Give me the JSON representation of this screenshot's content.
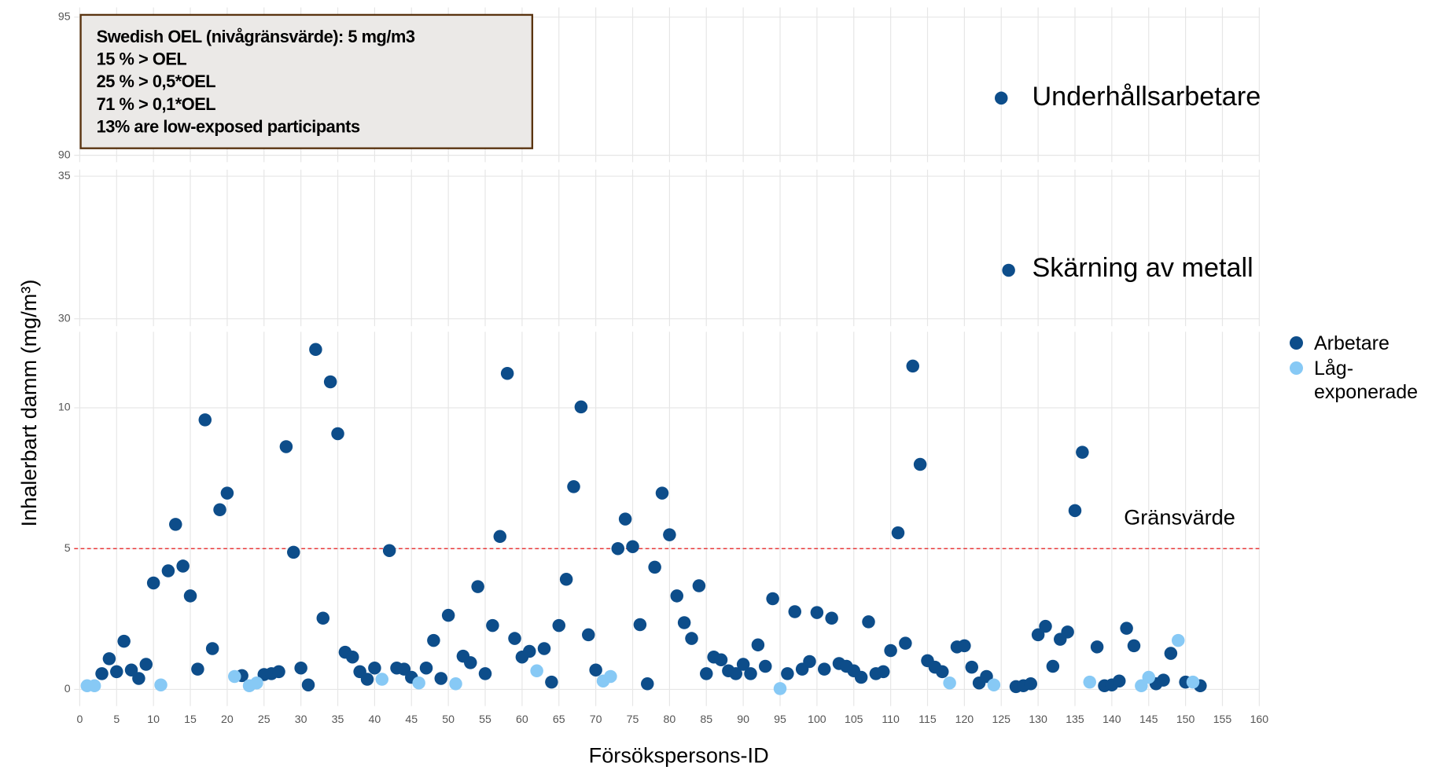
{
  "chart_data": {
    "type": "scatter",
    "xlabel": "Försökspersons-ID",
    "ylabel": "Inhalerbart damm (mg/m³)",
    "xlim": [
      0,
      160
    ],
    "xticks": [
      0,
      5,
      10,
      15,
      20,
      25,
      30,
      35,
      40,
      45,
      50,
      55,
      60,
      65,
      70,
      75,
      80,
      85,
      90,
      95,
      100,
      105,
      110,
      115,
      120,
      125,
      130,
      135,
      140,
      145,
      150,
      155,
      160
    ],
    "panels": [
      {
        "ylim": [
          89.75,
          95.35
        ],
        "yticks": [
          90,
          95
        ]
      },
      {
        "ylim": [
          29.74,
          35.23
        ],
        "yticks": [
          30,
          35
        ]
      },
      {
        "ylim": [
          -0.59,
          12.7
        ],
        "yticks": [
          0,
          5,
          10
        ]
      }
    ],
    "grid": true,
    "legend": "right",
    "series": [
      {
        "name": "Arbetare",
        "color": "#0d4d8a",
        "x": [
          3,
          4,
          5,
          6,
          7,
          8,
          9,
          10,
          12,
          13,
          14,
          15,
          16,
          17,
          18,
          19,
          20,
          22,
          25,
          26,
          27,
          28,
          29,
          30,
          31,
          32,
          33,
          34,
          35,
          36,
          37,
          38,
          39,
          40,
          42,
          43,
          44,
          45,
          47,
          48,
          49,
          50,
          52,
          53,
          54,
          55,
          56,
          57,
          58,
          59,
          60,
          61,
          63,
          64,
          65,
          66,
          67,
          68,
          69,
          70,
          73,
          74,
          75,
          76,
          77,
          78,
          79,
          80,
          81,
          82,
          83,
          84,
          85,
          86,
          87,
          88,
          89,
          90,
          91,
          92,
          93,
          94,
          96,
          97,
          98,
          99,
          100,
          101,
          102,
          103,
          104,
          105,
          106,
          107,
          108,
          109,
          110,
          111,
          112,
          113,
          114,
          115,
          116,
          117,
          119,
          120,
          121,
          122,
          123,
          125,
          126,
          127,
          128,
          129,
          130,
          131,
          132,
          133,
          134,
          135,
          136,
          138,
          139,
          140,
          141,
          142,
          143,
          146,
          147,
          148,
          150,
          152
        ],
        "values": [
          0.56,
          1.09,
          0.63,
          1.71,
          0.69,
          0.39,
          0.89,
          3.78,
          4.21,
          5.86,
          4.38,
          3.32,
          0.72,
          9.57,
          1.45,
          6.38,
          6.97,
          0.49,
          0.53,
          0.56,
          0.63,
          8.62,
          4.87,
          0.76,
          0.16,
          12.07,
          2.53,
          10.92,
          9.08,
          1.32,
          1.15,
          0.63,
          0.36,
          0.76,
          4.93,
          0.76,
          0.72,
          0.43,
          0.76,
          1.74,
          0.39,
          2.63,
          1.18,
          0.95,
          3.65,
          0.56,
          2.27,
          5.43,
          11.22,
          1.81,
          1.15,
          1.35,
          1.45,
          0.26,
          2.27,
          3.91,
          7.2,
          10.03,
          1.94,
          0.69,
          5.0,
          6.05,
          5.07,
          2.3,
          0.2,
          4.34,
          6.97,
          5.49,
          3.32,
          2.37,
          1.81,
          3.68,
          0.56,
          1.15,
          1.05,
          0.66,
          0.56,
          0.89,
          0.56,
          1.58,
          0.82,
          3.22,
          0.56,
          2.76,
          0.72,
          0.99,
          2.73,
          0.72,
          2.53,
          0.92,
          0.82,
          0.66,
          0.43,
          2.4,
          0.56,
          0.63,
          1.38,
          5.56,
          1.64,
          11.48,
          7.99,
          1.02,
          0.79,
          0.63,
          1.51,
          1.55,
          0.79,
          0.23,
          0.46,
          92.07,
          31.7,
          0.1,
          0.13,
          0.2,
          1.94,
          2.24,
          0.82,
          1.78,
          2.04,
          6.35,
          8.42,
          1.51,
          0.13,
          0.16,
          0.3,
          2.17,
          1.55,
          0.2,
          0.33,
          1.28,
          0.26,
          0.13
        ]
      },
      {
        "name": "Låg-exponerade",
        "color": "#87c9f5",
        "x": [
          1,
          2,
          11,
          21,
          23,
          24,
          41,
          46,
          51,
          62,
          71,
          72,
          95,
          118,
          124,
          137,
          144,
          145,
          149,
          151
        ],
        "values": [
          0.13,
          0.13,
          0.16,
          0.46,
          0.13,
          0.23,
          0.36,
          0.23,
          0.2,
          0.66,
          0.3,
          0.46,
          0.03,
          0.23,
          0.16,
          0.26,
          0.13,
          0.43,
          1.74,
          0.26
        ]
      }
    ],
    "hline": {
      "value": 5,
      "label": "Gränsvärde",
      "color": "#e8393a"
    },
    "annotations": [
      "Underhållsarbetare",
      "Skärning av metall"
    ],
    "info_box": [
      "Swedish OEL (nivågränsvärde): 5 mg/m3",
      "15 % > OEL",
      "25 % > 0,5*OEL",
      "71 % > 0,1*OEL",
      "13% are low-exposed participants"
    ]
  }
}
